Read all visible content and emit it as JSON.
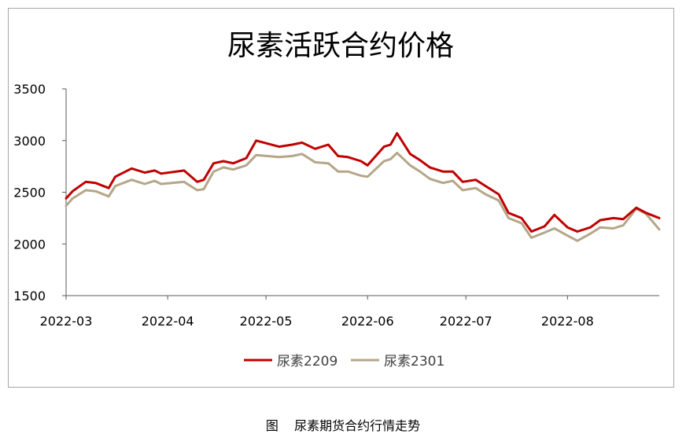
{
  "chart_data": {
    "type": "line",
    "title": "尿素活跃合约价格",
    "xlabel": "",
    "ylabel": "",
    "ylim": [
      1500,
      3500
    ],
    "y_ticks": [
      "1500",
      "2000",
      "2500",
      "3000",
      "3500"
    ],
    "x_ticks": [
      "2022-03",
      "2022-04",
      "2022-05",
      "2022-06",
      "2022-07",
      "2022-08"
    ],
    "grid": false,
    "legend_position": "bottom",
    "x": [
      "2022-03-01",
      "2022-03-03",
      "2022-03-07",
      "2022-03-10",
      "2022-03-14",
      "2022-03-16",
      "2022-03-21",
      "2022-03-25",
      "2022-03-28",
      "2022-03-30",
      "2022-04-06",
      "2022-04-10",
      "2022-04-12",
      "2022-04-15",
      "2022-04-18",
      "2022-04-21",
      "2022-04-25",
      "2022-04-28",
      "2022-05-05",
      "2022-05-09",
      "2022-05-12",
      "2022-05-16",
      "2022-05-20",
      "2022-05-23",
      "2022-05-26",
      "2022-05-30",
      "2022-06-01",
      "2022-06-06",
      "2022-06-08",
      "2022-06-10",
      "2022-06-14",
      "2022-06-17",
      "2022-06-20",
      "2022-06-24",
      "2022-06-27",
      "2022-06-30",
      "2022-07-04",
      "2022-07-07",
      "2022-07-11",
      "2022-07-14",
      "2022-07-18",
      "2022-07-21",
      "2022-07-25",
      "2022-07-28",
      "2022-08-01",
      "2022-08-04",
      "2022-08-08",
      "2022-08-11",
      "2022-08-15",
      "2022-08-18",
      "2022-08-22",
      "2022-08-25",
      "2022-08-29"
    ],
    "series": [
      {
        "name": "尿素2209",
        "color": "#c00000",
        "values": [
          2440,
          2510,
          2600,
          2590,
          2540,
          2650,
          2730,
          2690,
          2710,
          2680,
          2710,
          2600,
          2620,
          2780,
          2800,
          2780,
          2830,
          3000,
          2940,
          2960,
          2980,
          2920,
          2960,
          2850,
          2840,
          2800,
          2760,
          2940,
          2960,
          3070,
          2870,
          2810,
          2740,
          2700,
          2700,
          2600,
          2620,
          2560,
          2480,
          2300,
          2250,
          2120,
          2170,
          2280,
          2160,
          2120,
          2160,
          2230,
          2250,
          2240,
          2350,
          2300,
          2250
        ]
      },
      {
        "name": "尿素2301",
        "color": "#b5a688",
        "values": [
          2370,
          2440,
          2520,
          2510,
          2460,
          2560,
          2620,
          2580,
          2610,
          2580,
          2600,
          2520,
          2530,
          2700,
          2740,
          2720,
          2760,
          2860,
          2840,
          2850,
          2870,
          2790,
          2780,
          2700,
          2700,
          2660,
          2650,
          2800,
          2820,
          2880,
          2760,
          2700,
          2630,
          2590,
          2610,
          2520,
          2540,
          2480,
          2420,
          2250,
          2200,
          2060,
          2110,
          2150,
          2080,
          2030,
          2100,
          2160,
          2150,
          2180,
          2340,
          2290,
          2140
        ]
      }
    ]
  },
  "caption": {
    "prefix": "图",
    "text": "尿素期货合约行情走势"
  }
}
